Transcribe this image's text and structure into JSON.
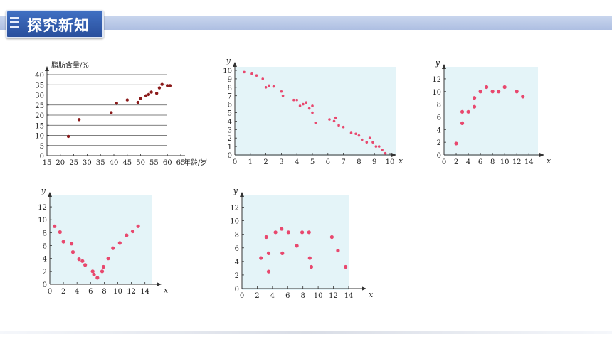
{
  "header": {
    "title": "探究新知",
    "icon": "list-icon"
  },
  "chart_data": [
    {
      "type": "scatter",
      "ylabel": "脂肪含量/%",
      "xlabel": "年龄/岁",
      "xticks": [
        15,
        20,
        25,
        30,
        35,
        40,
        45,
        50,
        55,
        60,
        65
      ],
      "yticks": [
        0,
        5,
        10,
        15,
        20,
        25,
        30,
        35,
        40
      ],
      "xlim": [
        15,
        65
      ],
      "ylim": [
        0,
        40
      ],
      "grid": true,
      "background": "#ffffff",
      "point_color": "#8b1a1a",
      "points": [
        [
          23,
          9.5
        ],
        [
          27,
          17.8
        ],
        [
          39,
          21.2
        ],
        [
          41,
          25.9
        ],
        [
          45,
          27.5
        ],
        [
          49,
          26.3
        ],
        [
          50,
          28.2
        ],
        [
          52,
          29.6
        ],
        [
          53,
          30.2
        ],
        [
          54,
          31.4
        ],
        [
          56,
          30.8
        ],
        [
          57,
          33.5
        ],
        [
          58,
          35.2
        ],
        [
          60,
          34.6
        ],
        [
          61,
          34.6
        ]
      ]
    },
    {
      "type": "scatter",
      "ylabel": "y",
      "xlabel": "x",
      "xticks": [
        0,
        1,
        2,
        3,
        4,
        5,
        6,
        7,
        8,
        9,
        10
      ],
      "yticks": [
        0,
        1,
        2,
        3,
        4,
        5,
        6,
        7,
        8,
        9,
        10
      ],
      "xlim": [
        0,
        10
      ],
      "ylim": [
        0,
        10
      ],
      "background": "#e4f4f8",
      "point_color": "#e8486e",
      "points": [
        [
          0.6,
          9.8
        ],
        [
          1.1,
          9.6
        ],
        [
          1.4,
          9.4
        ],
        [
          1.8,
          9.0
        ],
        [
          2.0,
          8.0
        ],
        [
          2.2,
          8.2
        ],
        [
          2.5,
          8.1
        ],
        [
          3.0,
          7.5
        ],
        [
          3.1,
          7.0
        ],
        [
          3.8,
          6.5
        ],
        [
          4.0,
          6.5
        ],
        [
          4.2,
          5.8
        ],
        [
          4.4,
          6.0
        ],
        [
          4.6,
          6.2
        ],
        [
          4.8,
          5.5
        ],
        [
          5.0,
          5.8
        ],
        [
          5.0,
          5.0
        ],
        [
          5.2,
          3.8
        ],
        [
          6.1,
          4.2
        ],
        [
          6.4,
          4.0
        ],
        [
          6.5,
          4.4
        ],
        [
          6.7,
          3.5
        ],
        [
          7.0,
          3.3
        ],
        [
          7.5,
          2.6
        ],
        [
          7.8,
          2.5
        ],
        [
          8.0,
          2.3
        ],
        [
          8.2,
          1.8
        ],
        [
          8.5,
          1.5
        ],
        [
          8.7,
          2.0
        ],
        [
          8.9,
          1.5
        ],
        [
          9.1,
          1.0
        ],
        [
          9.3,
          1.0
        ],
        [
          9.5,
          0.6
        ],
        [
          9.7,
          0.2
        ]
      ]
    },
    {
      "type": "scatter",
      "ylabel": "y",
      "xlabel": "x",
      "xticks": [
        0,
        2,
        4,
        6,
        8,
        10,
        12,
        14
      ],
      "yticks": [
        0,
        2,
        4,
        6,
        8,
        10,
        12
      ],
      "xlim": [
        0,
        15.5
      ],
      "ylim": [
        0,
        13
      ],
      "background": "#e4f4f8",
      "point_color": "#e8486e",
      "points": [
        [
          2,
          1.8
        ],
        [
          3,
          5.0
        ],
        [
          3,
          6.8
        ],
        [
          4,
          6.8
        ],
        [
          5,
          7.6
        ],
        [
          5,
          9.0
        ],
        [
          6,
          10.0
        ],
        [
          7,
          10.7
        ],
        [
          8,
          10.0
        ],
        [
          9,
          10.0
        ],
        [
          10,
          10.7
        ],
        [
          12,
          10.0
        ],
        [
          13,
          9.2
        ]
      ]
    },
    {
      "type": "scatter",
      "ylabel": "y",
      "xlabel": "x",
      "xticks": [
        0,
        2,
        4,
        6,
        8,
        10,
        12,
        14
      ],
      "yticks": [
        0,
        2,
        4,
        6,
        8,
        10,
        12
      ],
      "xlim": [
        0,
        15.5
      ],
      "ylim": [
        0,
        13
      ],
      "background": "#e4f4f8",
      "point_color": "#e8486e",
      "points": [
        [
          0.7,
          9.0
        ],
        [
          1.5,
          8.1
        ],
        [
          2,
          6.6
        ],
        [
          3.2,
          6.3
        ],
        [
          3.4,
          5.0
        ],
        [
          4.3,
          3.9
        ],
        [
          4.8,
          3.6
        ],
        [
          5.2,
          3.0
        ],
        [
          6.3,
          2.0
        ],
        [
          6.5,
          1.5
        ],
        [
          7,
          1.0
        ],
        [
          7.7,
          2.0
        ],
        [
          7.9,
          2.7
        ],
        [
          8.6,
          4.0
        ],
        [
          9.3,
          5.6
        ],
        [
          10.3,
          6.4
        ],
        [
          11.3,
          7.6
        ],
        [
          12.2,
          8.2
        ],
        [
          13,
          9.0
        ]
      ]
    },
    {
      "type": "scatter",
      "ylabel": "y",
      "xlabel": "x",
      "xticks": [
        0,
        2,
        4,
        6,
        8,
        10,
        12,
        14
      ],
      "yticks": [
        0,
        2,
        4,
        6,
        8,
        10,
        12
      ],
      "xlim": [
        0,
        15.5
      ],
      "ylim": [
        0,
        13
      ],
      "background": "#e4f4f8",
      "point_color": "#e8486e",
      "points": [
        [
          2.5,
          4.5
        ],
        [
          3.2,
          7.6
        ],
        [
          3.5,
          5.2
        ],
        [
          3.5,
          2.5
        ],
        [
          4.4,
          8.3
        ],
        [
          5.2,
          8.8
        ],
        [
          5.3,
          5.2
        ],
        [
          6.1,
          8.3
        ],
        [
          7.2,
          6.3
        ],
        [
          7.9,
          8.3
        ],
        [
          8.8,
          8.3
        ],
        [
          8.9,
          4.5
        ],
        [
          9.1,
          3.2
        ],
        [
          11.8,
          7.6
        ],
        [
          12.6,
          5.6
        ],
        [
          13.6,
          3.2
        ]
      ]
    }
  ]
}
